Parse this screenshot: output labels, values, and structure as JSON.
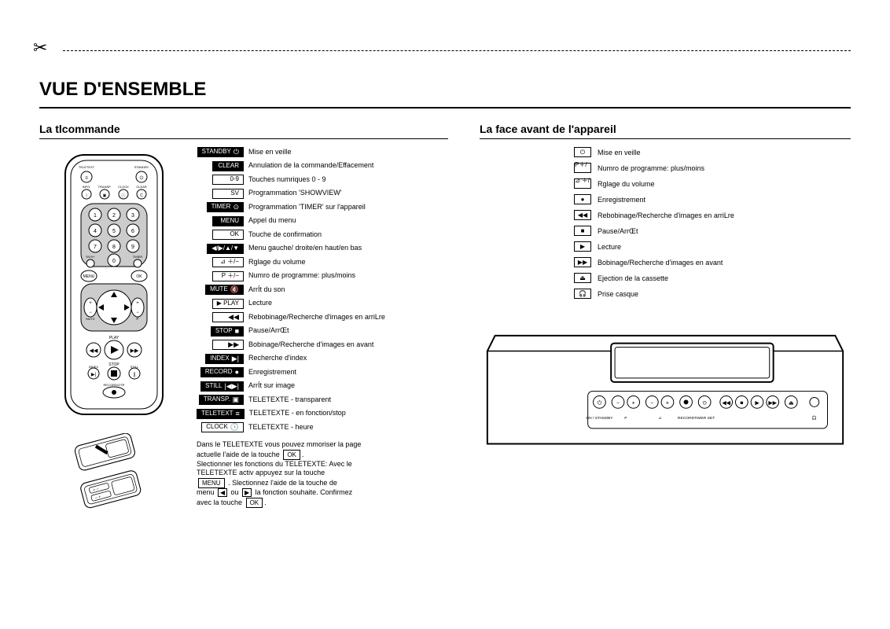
{
  "page": {
    "title": "VUE D'ENSEMBLE",
    "scissors_glyph": "✂"
  },
  "left": {
    "heading": "La tlcommande",
    "legend": [
      {
        "label": "STANDBY",
        "symbol": "⏻",
        "style": "solid",
        "desc": "Mise en veille"
      },
      {
        "label": "CLEAR",
        "symbol": "",
        "style": "solid",
        "desc": "Annulation de la commande/Effacement"
      },
      {
        "label": "0-9",
        "symbol": "",
        "style": "outline",
        "desc": "Touches numriques 0 - 9"
      },
      {
        "label": "SV",
        "symbol": "",
        "style": "outline",
        "desc": "Programmation 'SHOWVIEW'"
      },
      {
        "label": "TIMER",
        "symbol": "⊙",
        "style": "solid",
        "desc": "Programmation 'TIMER' sur l'appareil"
      },
      {
        "label": "MENU",
        "symbol": "",
        "style": "solid",
        "desc": "Appel du menu"
      },
      {
        "label": "OK",
        "symbol": "",
        "style": "outline",
        "desc": "Touche de confirmation"
      },
      {
        "label": "◀/▶/▲/▼",
        "symbol": "",
        "style": "solid",
        "desc": "Menu gauche/ droite/en haut/en bas"
      },
      {
        "label": "⊿ ＋/−",
        "symbol": "",
        "style": "outline",
        "desc": "Rglage du volume"
      },
      {
        "label": "P ＋/−",
        "symbol": "",
        "style": "outline",
        "desc": "Numro de programme: plus/moins"
      },
      {
        "label": "MUTE",
        "symbol": "🔇",
        "style": "solid",
        "desc": "ArrÍt du son"
      },
      {
        "label": "▶ PLAY",
        "symbol": "",
        "style": "outline",
        "desc": "Lecture"
      },
      {
        "label": "",
        "symbol": "◀◀",
        "style": "outline",
        "desc": "Rebobinage/Recherche d'images en arriLre"
      },
      {
        "label": "STOP",
        "symbol": "■",
        "style": "solid",
        "desc": "Pause/ArrŒt"
      },
      {
        "label": "",
        "symbol": "▶▶",
        "style": "outline",
        "desc": "Bobinage/Recherche d'images en avant"
      },
      {
        "label": "INDEX",
        "symbol": "▶|",
        "style": "solid",
        "desc": "Recherche d'index"
      },
      {
        "label": "RECORD",
        "symbol": "●",
        "style": "solid",
        "desc": "Enregistrement"
      },
      {
        "label": "STILL",
        "symbol": "|◀▶|",
        "style": "solid",
        "desc": "ArrÍt sur image"
      },
      {
        "label": "TRANSP.",
        "symbol": "▣",
        "style": "solid",
        "desc": "TELETEXTE - transparent"
      },
      {
        "label": "TELETEXT",
        "symbol": "≡",
        "style": "solid",
        "desc": "TELETEXTE - en fonction/stop"
      },
      {
        "label": "CLOCK",
        "symbol": "🕓",
        "style": "outline",
        "desc": "TELETEXTE - heure"
      }
    ],
    "note": {
      "l1a": "Dans le TELETEXTE vous pouvez mmoriser la page",
      "l1b": "actuelle  l'aide de la touche",
      "ok": "OK",
      "l2": "Slectionner les fonctions du TELETEXTE: Avec le",
      "l3": "TELETEXTE activ appuyez sur la touche",
      "menu": "MENU",
      "l4a": ". Slectionnez  l'aide de la touche de",
      "l4b": "menu",
      "l4c": "ou",
      "l4d": "la fonction souhaite. Confirmez",
      "l5": "avec la touche"
    }
  },
  "right": {
    "heading": "La face avant de l'appareil",
    "legend": [
      {
        "symbol": "⏻",
        "desc": "Mise en veille"
      },
      {
        "symbol": "P＋/−",
        "desc": "Numro de programme: plus/moins"
      },
      {
        "symbol": "⊿ ＋/−",
        "desc": "Rglage du volume"
      },
      {
        "symbol": "●",
        "desc": "Enregistrement"
      },
      {
        "symbol": "◀◀",
        "desc": "Rebobinage/Recherche d'images en arriLre"
      },
      {
        "symbol": "■",
        "desc": "Pause/ArrŒt"
      },
      {
        "symbol": "▶",
        "desc": "Lecture"
      },
      {
        "symbol": "▶▶",
        "desc": "Bobinage/Recherche d'images en avant"
      },
      {
        "symbol": "⏏",
        "desc": "Ejection de la cassette"
      },
      {
        "symbol": "🎧",
        "desc": "Prise casque"
      }
    ],
    "device_labels": {
      "standby": "ON / STANDBY",
      "p": "P",
      "vol": "⊿",
      "record": "RECORD",
      "timer": "TIMER SET",
      "headphone": "🎧"
    }
  },
  "style": {
    "bg": "#ffffff",
    "fg": "#000000",
    "title_fontsize": 24,
    "h_fontsize": 14,
    "body_fontsize": 9,
    "btn_fontsize": 8
  }
}
